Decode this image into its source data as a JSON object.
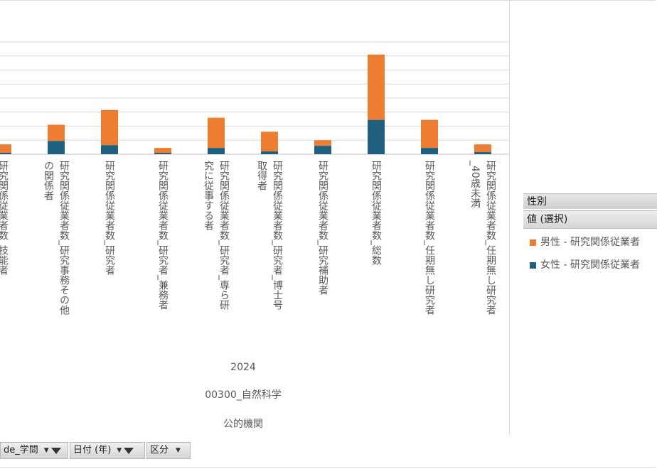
{
  "chart_data": {
    "type": "bar",
    "stacked": true,
    "categories": [
      "研究関係従業者数_技能者",
      "研究関係従業者数_研究事務その他の関係者",
      "研究関係従業者数_研究者",
      "研究関係従業者数_研究者_兼務者",
      "研究関係従業者数_研究者_専ら研究に従事する者",
      "研究関係従業者数_研究者_博士号取得者",
      "研究関係従業者数_研究補助者",
      "研究関係従業者数_総数",
      "研究関係従業者数_任期無し研究者",
      "研究関係従業者数_任期無し研究者_40歳未満"
    ],
    "category_lines": [
      [
        "研究関係従業者数_技能者"
      ],
      [
        "研究関係従業者数_研究事務その他",
        "の関係者"
      ],
      [
        "研究関係従業者数_研究者"
      ],
      [
        "研究関係従業者数_研究者_兼務者"
      ],
      [
        "研究関係従業者数_研究者_専ら研",
        "究に従事する者"
      ],
      [
        "研究関係従業者数_研究者_博士号",
        "取得者"
      ],
      [
        "研究関係従業者数_研究補助者"
      ],
      [
        "研究関係従業者数_総数"
      ],
      [
        "研究関係従業者数_任期無し研究者"
      ],
      [
        "研究関係従業者数_任期無し研究者",
        "_40歳未満"
      ]
    ],
    "series": [
      {
        "name": "女性 - 研究関係従業者",
        "color": "#1f5f7f",
        "values": [
          2,
          19,
          13,
          2,
          9,
          4,
          12,
          49,
          9,
          3
        ]
      },
      {
        "name": "男性 - 研究関係従業者",
        "color": "#ed7d31",
        "values": [
          12,
          23,
          50,
          7,
          43,
          28,
          8,
          93,
          40,
          11
        ]
      }
    ],
    "ylim": [
      0,
      160
    ],
    "gridlines": 8,
    "grid": true,
    "x_axis_levels": [
      "2024",
      "00300_自然科学",
      "公的機関"
    ]
  },
  "legend": {
    "header": "性別",
    "subheader": "値 (選択)"
  },
  "filters": [
    {
      "label": "de_学問"
    },
    {
      "label": "日付 (年)"
    },
    {
      "label": "区分"
    }
  ]
}
